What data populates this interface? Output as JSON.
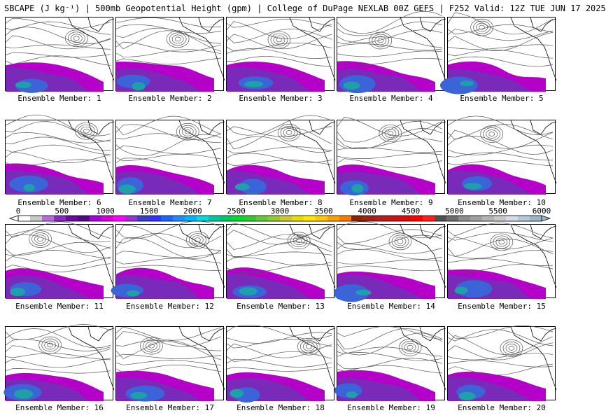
{
  "header": {
    "text": "SBCAPE (J kg⁻¹) | 500mb Geopotential Height (gpm) | College of DuPage NEXLAB 00Z GEFS | F252 Valid: 12Z TUE JUN 17 2025"
  },
  "members": [
    "Ensemble Member: 1",
    "Ensemble Member: 2",
    "Ensemble Member: 3",
    "Ensemble Member: 4",
    "Ensemble Member: 5",
    "Ensemble Member: 6",
    "Ensemble Member: 7",
    "Ensemble Member: 8",
    "Ensemble Member: 9",
    "Ensemble Member: 10",
    "Ensemble Member: 11",
    "Ensemble Member: 12",
    "Ensemble Member: 13",
    "Ensemble Member: 14",
    "Ensemble Member: 15",
    "Ensemble Member: 16",
    "Ensemble Member: 17",
    "Ensemble Member: 18",
    "Ensemble Member: 19",
    "Ensemble Member: 20"
  ],
  "colorbar": {
    "ticks": [
      "0",
      "500",
      "1000",
      "1500",
      "2000",
      "2500",
      "3000",
      "3500",
      "4000",
      "4500",
      "5000",
      "5500",
      "6000"
    ],
    "colors": [
      "#ffffff",
      "#c8c8c8",
      "#b46ed8",
      "#8c28c8",
      "#6e0aa0",
      "#500a8c",
      "#aa00dc",
      "#d200d2",
      "#ff00ff",
      "#9a32cd",
      "#3c3cc8",
      "#3232ff",
      "#1e64ff",
      "#1e8cff",
      "#00b4ff",
      "#00dcdc",
      "#00c8a0",
      "#00c864",
      "#00dc32",
      "#32c832",
      "#64c83c",
      "#96c832",
      "#c8c832",
      "#e6dc00",
      "#ffe600",
      "#ffc800",
      "#ffa000",
      "#ff7800",
      "#8b2500",
      "#a02020",
      "#b41e1e",
      "#c81414",
      "#dc0a0a",
      "#ff0000",
      "#ff1e1e",
      "#505050",
      "#6e6e6e",
      "#8c8c8c",
      "#a0a0a0",
      "#b4b4b4",
      "#c8c8c8",
      "#d2dce6",
      "#b4c8dc",
      "#9ab4c8"
    ]
  },
  "palette": {
    "deep": "#1fa0a8",
    "mid": "#3a64d8",
    "low": "#7a2ab8",
    "edge": "#b400c8",
    "core": "#18e6c8",
    "contour": "#555555",
    "coast": "#000000"
  }
}
